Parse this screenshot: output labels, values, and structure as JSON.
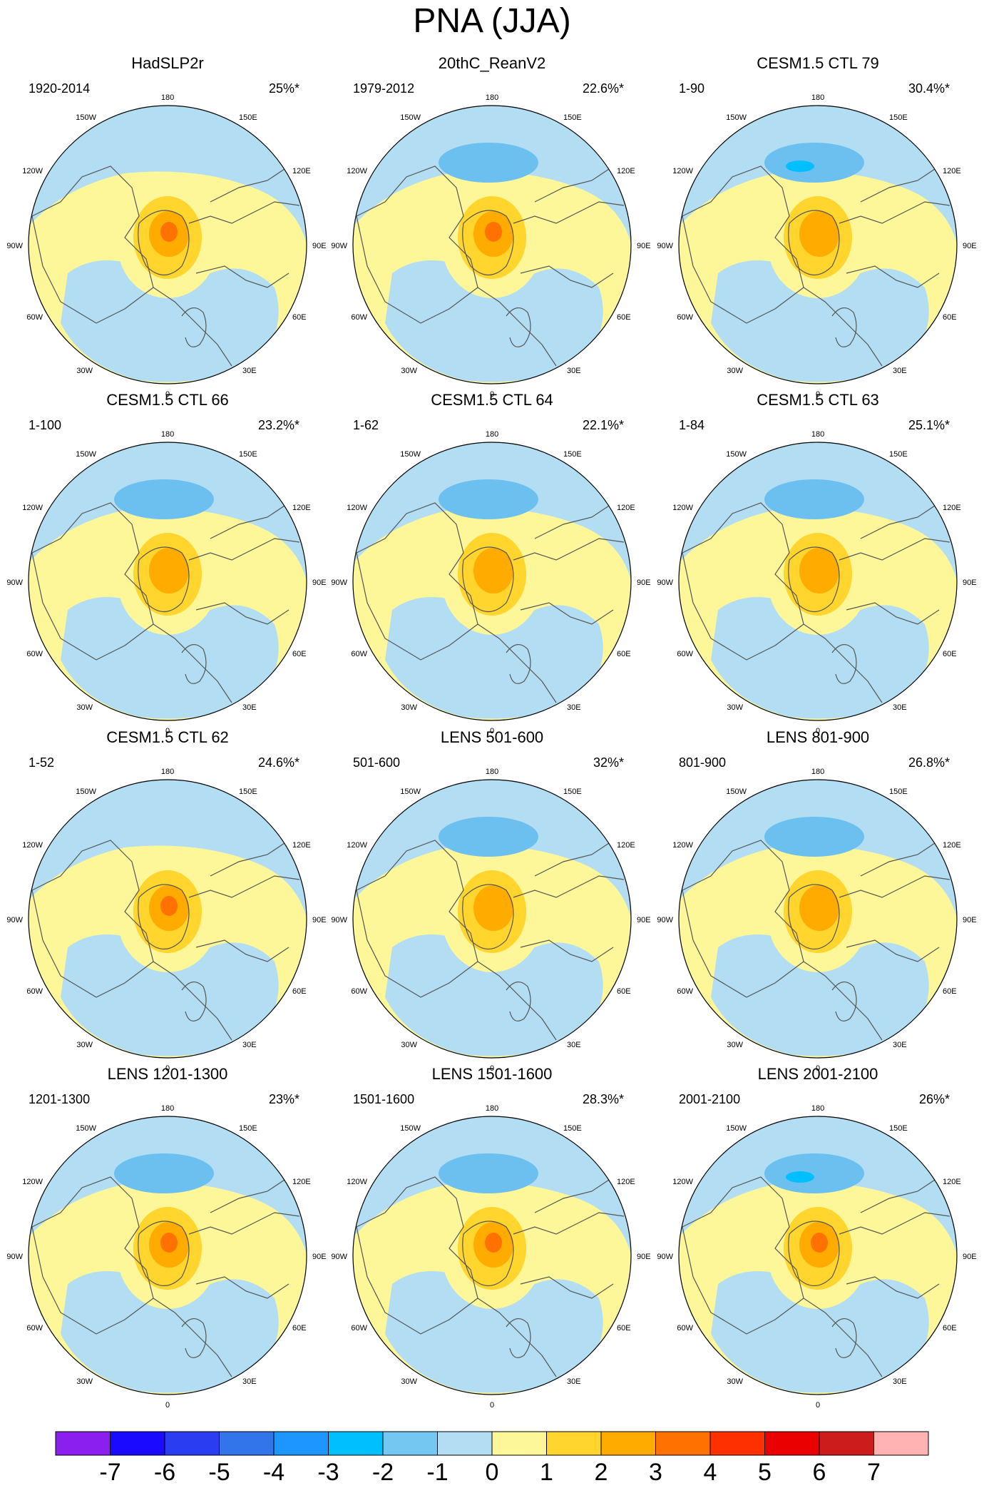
{
  "title": "PNA (JJA)",
  "lon_labels": {
    "top": "180",
    "bottom": "0",
    "left": "90W",
    "right": "90E",
    "ul1": "150W",
    "ul2": "120W",
    "ur1": "150E",
    "ur2": "120E",
    "ll1": "60W",
    "ll2": "30W",
    "lr1": "60E",
    "lr2": "30E"
  },
  "colors": {
    "land_outline": "#555555",
    "background_negative": "#b3ddf2",
    "background_positive": "#fdf79a",
    "dark_blue_patch": "#6cc0ef",
    "core_blue": "#00bfff",
    "orange_light": "#ffd52e",
    "orange_mid": "#ffab00",
    "orange_dark": "#ff7100"
  },
  "chart_data": {
    "type": "heatmap",
    "projection": "north polar stereographic",
    "title": "PNA (JJA)",
    "panels": [
      {
        "title": "HadSLP2r",
        "period": "1920-2014",
        "variance": "25%*",
        "center_max": 4,
        "pacific_min": -1
      },
      {
        "title": "20thC_ReanV2",
        "period": "1979-2012",
        "variance": "22.6%*",
        "center_max": 4,
        "pacific_min": -2
      },
      {
        "title": "CESM1.5 CTL 79",
        "period": "1-90",
        "variance": "30.4%*",
        "center_max": 3,
        "pacific_min": -3
      },
      {
        "title": "CESM1.5 CTL 66",
        "period": "1-100",
        "variance": "23.2%*",
        "center_max": 3,
        "pacific_min": -2
      },
      {
        "title": "CESM1.5 CTL 64",
        "period": "1-62",
        "variance": "22.1%*",
        "center_max": 3,
        "pacific_min": -2
      },
      {
        "title": "CESM1.5 CTL 63",
        "period": "1-84",
        "variance": "25.1%*",
        "center_max": 3,
        "pacific_min": -2
      },
      {
        "title": "CESM1.5 CTL 62",
        "period": "1-52",
        "variance": "24.6%*",
        "center_max": 4,
        "pacific_min": -1
      },
      {
        "title": "LENS 501-600",
        "period": "501-600",
        "variance": "32%*",
        "center_max": 3,
        "pacific_min": -2
      },
      {
        "title": "LENS 801-900",
        "period": "801-900",
        "variance": "26.8%*",
        "center_max": 3,
        "pacific_min": -2
      },
      {
        "title": "LENS 1201-1300",
        "period": "1201-1300",
        "variance": "23%*",
        "center_max": 4,
        "pacific_min": -2
      },
      {
        "title": "LENS 1501-1600",
        "period": "1501-1600",
        "variance": "28.3%*",
        "center_max": 4,
        "pacific_min": -2
      },
      {
        "title": "LENS 2001-2100",
        "period": "2001-2100",
        "variance": "26%*",
        "center_max": 4,
        "pacific_min": -3
      }
    ],
    "colorbar": {
      "labels": [
        "-7",
        "-6",
        "-5",
        "-4",
        "-3",
        "-2",
        "-1",
        "0",
        "1",
        "2",
        "3",
        "4",
        "5",
        "6",
        "7"
      ],
      "colors": [
        "#8a1fee",
        "#1a0aff",
        "#2a3df0",
        "#3275ea",
        "#1e96ff",
        "#00bfff",
        "#73c7f0",
        "#b3ddf2",
        "#fdf79a",
        "#ffd52e",
        "#ffab00",
        "#ff7100",
        "#ff3000",
        "#ea0000",
        "#cc1c1c",
        "#ffb3b3"
      ]
    }
  }
}
